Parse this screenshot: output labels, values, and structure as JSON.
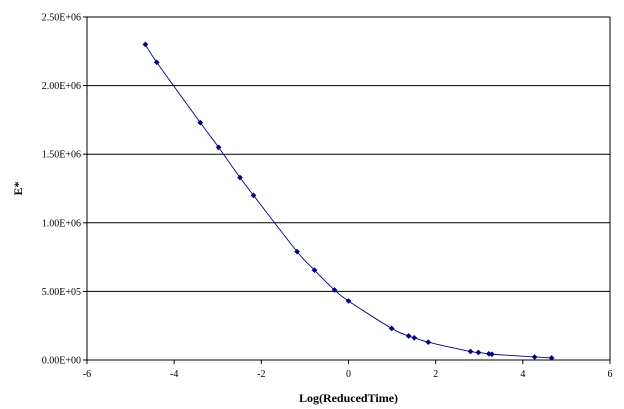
{
  "chart_data": {
    "type": "scatter",
    "title": "",
    "xlabel": "Log(ReducedTime)",
    "ylabel": "E*",
    "xlim": [
      -6,
      6
    ],
    "ylim": [
      0,
      2500000
    ],
    "x_ticks": [
      -6,
      -4,
      -2,
      0,
      2,
      4,
      6
    ],
    "x_tick_labels": [
      "-6",
      "-4",
      "-2",
      "0",
      "2",
      "4",
      "6"
    ],
    "y_ticks": [
      0,
      500000,
      1000000,
      1500000,
      2000000,
      2500000
    ],
    "y_tick_labels": [
      "0.00E+00",
      "5.00E+05",
      "1.00E+06",
      "1.50E+06",
      "2.00E+06",
      "2.50E+06"
    ],
    "grid": "horizontal",
    "legend": "none",
    "series_color": "#000080",
    "series": [
      {
        "x": [
          -4.66,
          -4.4,
          -3.4,
          -2.98,
          -2.49,
          -2.18,
          -1.18,
          -0.78,
          -0.32,
          0.0,
          0.99,
          1.38,
          1.51,
          1.83,
          2.8,
          2.98,
          3.22,
          3.29,
          4.27,
          4.66
        ],
        "y": [
          2300000,
          2170000,
          1730000,
          1550000,
          1330000,
          1200000,
          790000,
          655000,
          510000,
          430000,
          230000,
          175000,
          162000,
          130000,
          62000,
          55000,
          45000,
          42000,
          22000,
          15000
        ]
      }
    ]
  }
}
